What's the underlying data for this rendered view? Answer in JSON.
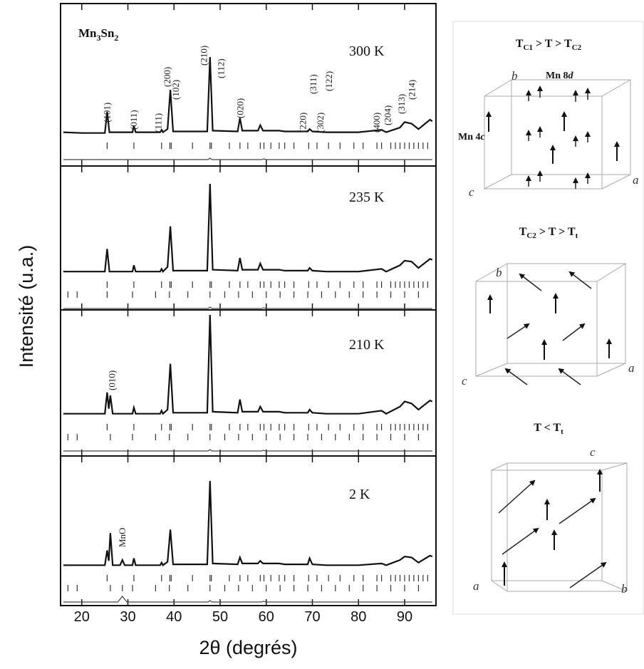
{
  "ylabel": "Intensité (u.a.)",
  "chart_data": [
    {
      "type": "line",
      "title": "300 K",
      "label_parts": [
        "Mn",
        "3",
        "Sn",
        "2"
      ],
      "xlim": [
        15.4,
        96.8
      ],
      "xticks": [
        20,
        30,
        40,
        50,
        60,
        70,
        80,
        90
      ],
      "x": [
        16,
        20,
        25,
        25.5,
        26,
        31,
        31.3,
        31.7,
        37,
        37.3,
        37.6,
        38.6,
        39.2,
        39.8,
        47.2,
        47.8,
        48.4,
        53.8,
        54.3,
        54.8,
        58.2,
        58.7,
        59.3,
        61,
        62.8,
        64,
        69,
        69.4,
        70,
        73,
        80,
        85,
        86,
        89,
        90,
        91.5,
        93,
        95.5,
        96
      ],
      "values": [
        4,
        3,
        3,
        30,
        4,
        4,
        12,
        4,
        4,
        7,
        4,
        8,
        58,
        5,
        5,
        100,
        6,
        5,
        22,
        6,
        6,
        13,
        6,
        6,
        6,
        5,
        5,
        8,
        5,
        4,
        4,
        7,
        4,
        10,
        17,
        15,
        8,
        20,
        18
      ],
      "reflections": [
        [
          25.5,
          31.3,
          37.3,
          39.1,
          39.4,
          44,
          47.8,
          48.1,
          52,
          54.3,
          56,
          58.7,
          59.5,
          61,
          62.8,
          64,
          66,
          69.2,
          71,
          73.5,
          76,
          79,
          81,
          84,
          85,
          87,
          88,
          89,
          90,
          91,
          92,
          93,
          94,
          95
        ]
      ],
      "difference": {
        "x": [
          16,
          47.4,
          47.8,
          48.2,
          59,
          59.4,
          60,
          96
        ],
        "values": [
          0,
          0,
          2,
          0,
          0,
          1,
          0,
          0
        ]
      },
      "annotations": [
        {
          "text": "(101)",
          "x": 25.5
        },
        {
          "text": "(011)",
          "x": 31.3
        },
        {
          "text": "(111)",
          "x": 36.6
        },
        {
          "text": "(200)",
          "x": 38.6
        },
        {
          "text": "(102)",
          "x": 40.4
        },
        {
          "text": "(210)",
          "x": 46.5
        },
        {
          "text": "(112)",
          "x": 50.2
        },
        {
          "text": "(020)",
          "x": 54.4
        },
        {
          "text": "(220)",
          "x": 68
        },
        {
          "text": "(311)",
          "x": 70.2
        },
        {
          "text": "(122)",
          "x": 73.6
        },
        {
          "text": "(302)",
          "x": 71.8
        },
        {
          "text": "(400)",
          "x": 84
        },
        {
          "text": "(204)",
          "x": 86.4
        },
        {
          "text": "(313)",
          "x": 89.4
        },
        {
          "text": "(214)",
          "x": 91.6
        }
      ]
    },
    {
      "type": "line",
      "title": "235 K",
      "xlim": [
        15.4,
        96.8
      ],
      "xticks": [
        20,
        30,
        40,
        50,
        60,
        70,
        80,
        90
      ],
      "x": [
        16,
        20,
        25,
        25.5,
        26,
        31,
        31.3,
        31.7,
        37,
        37.3,
        37.6,
        38.6,
        39.2,
        39.8,
        47.2,
        47.8,
        48.4,
        53.8,
        54.3,
        54.8,
        58.2,
        58.7,
        59.3,
        61,
        62.8,
        64,
        69,
        69.4,
        70,
        73,
        80,
        85,
        86,
        89,
        90,
        91.5,
        93,
        95.5,
        96
      ],
      "values": [
        3,
        3,
        3,
        28,
        3,
        3,
        10,
        3,
        3,
        6,
        3,
        8,
        53,
        4,
        4,
        100,
        5,
        4,
        18,
        5,
        5,
        12,
        5,
        5,
        5,
        4,
        4,
        7,
        4,
        3,
        3,
        6,
        3,
        10,
        15,
        14,
        7,
        17,
        16
      ],
      "reflections": [
        [
          25.5,
          31.3,
          37.3,
          39.1,
          39.4,
          44,
          47.8,
          48.1,
          52,
          54.3,
          56,
          58.7,
          59.5,
          61,
          62.8,
          64,
          66,
          69.2,
          71,
          73.5,
          76,
          79,
          81,
          84,
          85,
          87,
          88,
          89,
          90,
          91,
          92,
          93,
          94,
          95
        ],
        [
          17,
          19,
          25.5,
          31,
          36,
          39,
          43,
          47.8,
          51,
          54,
          57,
          60,
          63,
          66,
          69,
          72,
          75,
          78,
          81,
          84,
          87,
          90,
          93
        ]
      ],
      "difference": {
        "x": [
          16,
          47.4,
          47.8,
          48.2,
          59,
          59.4,
          60,
          96
        ],
        "values": [
          0,
          0,
          2,
          0,
          0,
          1,
          0,
          0
        ]
      },
      "annotations": []
    },
    {
      "type": "line",
      "title": "210 K",
      "xlim": [
        15.4,
        96.8
      ],
      "xticks": [
        20,
        30,
        40,
        50,
        60,
        70,
        80,
        90
      ],
      "x": [
        16,
        20,
        25,
        25.5,
        25.85,
        26.2,
        26.7,
        31,
        31.3,
        31.7,
        37,
        37.3,
        37.6,
        38.6,
        39.2,
        39.8,
        47.2,
        47.8,
        48.4,
        53.8,
        54.3,
        54.8,
        58.2,
        58.7,
        59.3,
        61,
        62.8,
        64,
        69,
        69.4,
        70,
        73,
        80,
        85,
        86,
        89,
        90,
        91.5,
        93,
        95.5,
        96
      ],
      "values": [
        3,
        3,
        3,
        24,
        8,
        21,
        3,
        3,
        9,
        3,
        3,
        6,
        3,
        7,
        52,
        4,
        4,
        100,
        5,
        4,
        17,
        5,
        5,
        10,
        5,
        5,
        5,
        4,
        4,
        7,
        4,
        3,
        3,
        6,
        3,
        10,
        15,
        13,
        7,
        16,
        15
      ],
      "reflections": [
        [
          25.5,
          31.3,
          37.3,
          39.1,
          39.4,
          44,
          47.8,
          48.1,
          52,
          54.3,
          56,
          58.7,
          59.5,
          61,
          62.8,
          64,
          66,
          69.2,
          71,
          73.5,
          76,
          79,
          81,
          84,
          85,
          87,
          88,
          89,
          90,
          91,
          92,
          93,
          94,
          95
        ],
        [
          17,
          19,
          26.2,
          31,
          36,
          39,
          43,
          47.8,
          51,
          54,
          57,
          60,
          63,
          66,
          69,
          72,
          75,
          78,
          81,
          84,
          87,
          90,
          93
        ]
      ],
      "difference": {
        "x": [
          16,
          47.4,
          47.8,
          48.2,
          59,
          59.4,
          60,
          96
        ],
        "values": [
          0,
          0,
          2,
          0,
          0,
          1,
          0,
          0
        ]
      },
      "annotations": [
        {
          "text": "(010)",
          "x": 26.6
        }
      ]
    },
    {
      "type": "line",
      "title": "2 K",
      "xlabel": "2θ (degrés)",
      "xlim": [
        15.4,
        96.8
      ],
      "xticks": [
        20,
        30,
        40,
        50,
        60,
        70,
        80,
        90
      ],
      "x": [
        16,
        20,
        25,
        25.5,
        25.85,
        26.2,
        26.7,
        28.3,
        28.8,
        29.3,
        31,
        31.3,
        31.7,
        37,
        37.3,
        37.6,
        38.6,
        39.2,
        39.8,
        47.2,
        47.8,
        48.4,
        53.8,
        54.3,
        54.8,
        58.2,
        58.7,
        59.3,
        61,
        62.8,
        64,
        69,
        69.4,
        70,
        73,
        80,
        85,
        86,
        89,
        90,
        91.5,
        93,
        95.5,
        96
      ],
      "values": [
        3,
        3,
        3,
        20,
        8,
        40,
        3,
        3,
        9,
        3,
        3,
        11,
        3,
        3,
        6,
        3,
        7,
        44,
        4,
        4,
        100,
        5,
        4,
        12,
        5,
        5,
        8,
        5,
        5,
        5,
        4,
        4,
        11,
        4,
        3,
        3,
        5,
        3,
        9,
        13,
        12,
        6,
        14,
        13
      ],
      "reflections": [
        [
          25.5,
          31.3,
          37.3,
          39.1,
          39.4,
          44,
          47.8,
          48.1,
          52,
          54.3,
          56,
          58.7,
          59.5,
          61,
          62.8,
          64,
          66,
          69.2,
          71,
          73.5,
          76,
          79,
          81,
          84,
          85,
          87,
          88,
          89,
          90,
          91,
          92,
          93,
          94,
          95
        ],
        [
          17,
          19,
          26.2,
          28.8,
          31,
          36,
          39,
          43,
          47.8,
          51,
          54,
          57,
          60,
          63,
          66,
          69,
          72,
          75,
          78,
          81,
          84,
          87,
          90,
          93
        ]
      ],
      "difference": {
        "x": [
          16,
          27.8,
          28.8,
          29.8,
          47.4,
          47.8,
          48.2,
          59,
          59.4,
          60,
          96
        ],
        "values": [
          0,
          0,
          8,
          0,
          0,
          2,
          0,
          0,
          1,
          0,
          0
        ]
      },
      "annotations": [
        {
          "text": "MnO",
          "x": 28.8
        }
      ]
    }
  ],
  "structures": [
    {
      "title": [
        "T",
        "C1",
        " > T > T",
        "C2"
      ],
      "axes": [
        "a",
        "b",
        "c"
      ],
      "sites": [
        [
          "Mn 8",
          "d"
        ],
        [
          "Mn 4",
          "c"
        ]
      ]
    },
    {
      "title": [
        "T",
        "C2",
        " > T > T",
        "t"
      ],
      "axes": [
        "a",
        "b",
        "c"
      ]
    },
    {
      "title": [
        "T < T",
        "t"
      ],
      "axes": [
        "a",
        "b",
        "c"
      ]
    }
  ]
}
